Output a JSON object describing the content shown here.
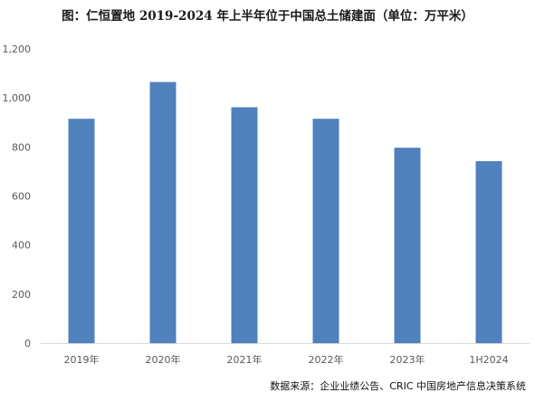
{
  "chart_data": {
    "type": "bar",
    "title": "图：仁恒置地 2019-2024 年上半年位于中国总土储建面（单位：万平米）",
    "categories": [
      "2019年",
      "2020年",
      "2021年",
      "2022年",
      "2023年",
      "1H2024"
    ],
    "values": [
      915,
      1065,
      962,
      915,
      797,
      742
    ],
    "ylim": [
      0,
      1200
    ],
    "yticks": [
      0,
      200,
      400,
      600,
      800,
      1000,
      1200
    ],
    "ytick_labels": [
      "0",
      "200",
      "400",
      "600",
      "800",
      "1,000",
      "1,200"
    ],
    "xlabel": "",
    "ylabel": "",
    "grid": false,
    "bar_color": "#4f81bd",
    "source": "数据来源：企业业绩公告、CRIC 中国房地产信息决策系统"
  }
}
